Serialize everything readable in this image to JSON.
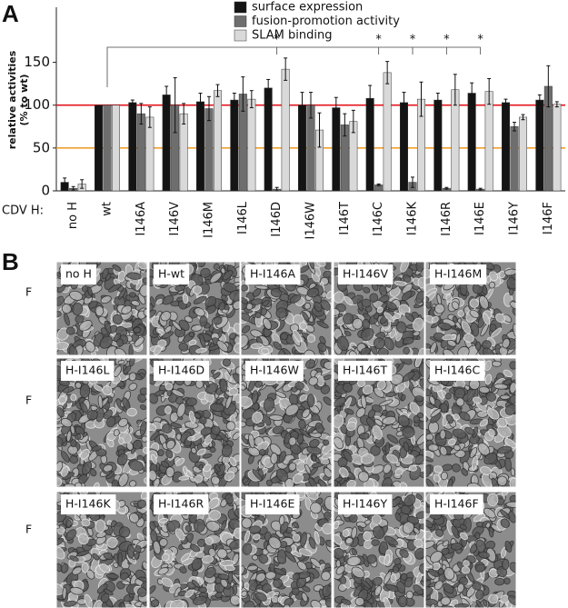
{
  "panels": [
    "A",
    "B"
  ],
  "chart_data": {
    "type": "bar",
    "ylabel": [
      "relative activities",
      "(% to wt)"
    ],
    "xlabel": "CDV H:",
    "categories": [
      "no H",
      "wt",
      "I146A",
      "I146V",
      "I146M",
      "I146L",
      "I146D",
      "I146W",
      "I146T",
      "I146C",
      "I146K",
      "I146R",
      "I146E",
      "I146Y",
      "I146F"
    ],
    "category_label_colors": [
      "#111111",
      "#111111",
      "#111111",
      "#111111",
      "#111111",
      "#111111",
      "#2b2bb8",
      "#111111",
      "#111111",
      "#2b2bb8",
      "#2b2bb8",
      "#2b2bb8",
      "#2b2bb8",
      "#111111",
      "#111111"
    ],
    "series": [
      {
        "name": "surface expression",
        "color": "#141414",
        "values": [
          10,
          100,
          103,
          112,
          104,
          106,
          120,
          100,
          97,
          108,
          103,
          106,
          114,
          103,
          106
        ],
        "errors": [
          5,
          0,
          3,
          10,
          10,
          8,
          10,
          15,
          12,
          15,
          12,
          8,
          12,
          4,
          6
        ]
      },
      {
        "name": "fusion-promotion activity",
        "color": "#6e6e6e",
        "values": [
          3,
          100,
          90,
          100,
          96,
          113,
          2,
          100,
          77,
          7,
          10,
          3,
          2,
          75,
          122
        ],
        "errors": [
          2,
          0,
          12,
          32,
          14,
          20,
          2,
          15,
          13,
          1,
          6,
          1,
          1,
          5,
          24
        ]
      },
      {
        "name": "SLAM binding",
        "color": "#d9d9d9",
        "values": [
          8,
          100,
          86,
          90,
          117,
          107,
          142,
          71,
          81,
          138,
          107,
          118,
          116,
          86,
          101
        ],
        "errors": [
          5,
          0,
          12,
          12,
          7,
          10,
          13,
          20,
          13,
          13,
          20,
          18,
          15,
          3,
          3
        ]
      }
    ],
    "ylim": [
      0,
      210
    ],
    "yticks": [
      0,
      50,
      100,
      150
    ],
    "reference_lines": [
      {
        "value": 100,
        "color": "#e3141c"
      },
      {
        "value": 50,
        "color": "#f0a030"
      }
    ],
    "significance_reference": "wt",
    "significance": [
      {
        "category": "I146D",
        "label": "*"
      },
      {
        "category": "I146C",
        "label": "*"
      },
      {
        "category": "I146K",
        "label": "*"
      },
      {
        "category": "I146R",
        "label": "*"
      },
      {
        "category": "I146E",
        "label": "*"
      }
    ]
  },
  "micrographs": [
    {
      "row_label": "F",
      "panels": [
        "no H",
        "H-wt",
        "H-I146A",
        "H-I146V",
        "H-I146M"
      ]
    },
    {
      "row_label": "F",
      "panels": [
        "H-I146L",
        "H-I146D",
        "H-I146W",
        "H-I146T",
        "H-I146C"
      ]
    },
    {
      "row_label": "F",
      "panels": [
        "H-I146K",
        "H-I146R",
        "H-I146E",
        "H-I146Y",
        "H-I146F"
      ]
    }
  ]
}
